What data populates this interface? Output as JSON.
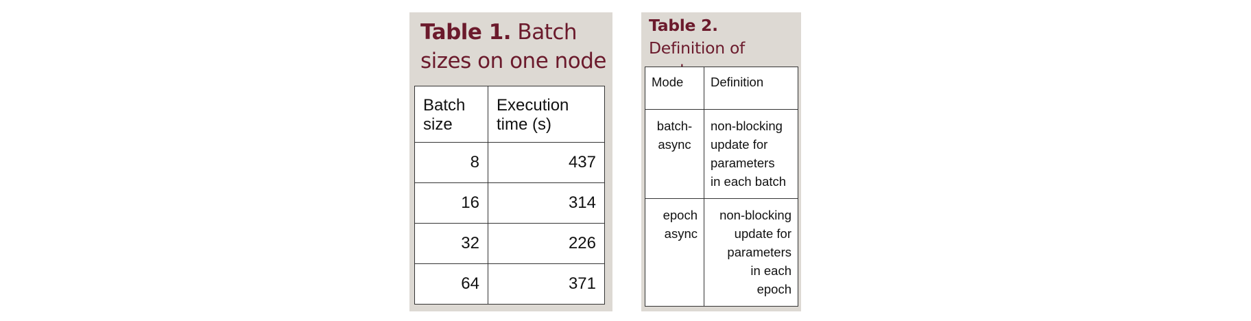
{
  "table1": {
    "caption_label": "Table 1.",
    "caption_text": "Batch sizes on one node",
    "headers": [
      "Batch\nsize",
      "Execution\ntime (s)"
    ],
    "rows": [
      [
        "8",
        "437"
      ],
      [
        "16",
        "314"
      ],
      [
        "32",
        "226"
      ],
      [
        "64",
        "371"
      ]
    ]
  },
  "table2": {
    "caption_label": "Table 2.",
    "caption_text": "Definition of modes",
    "headers": [
      "Mode",
      "Definition"
    ],
    "rows": [
      [
        "batch-\nasync",
        "non-blocking\nupdate for\nparameters\nin each batch"
      ],
      [
        "epoch\nasync",
        "non-blocking\nupdate for\nparameters\nin each\nepoch"
      ]
    ]
  },
  "colors": {
    "caption": "#6b1a2c",
    "panel_background": "#ddd9d3",
    "table_border": "#333333"
  }
}
